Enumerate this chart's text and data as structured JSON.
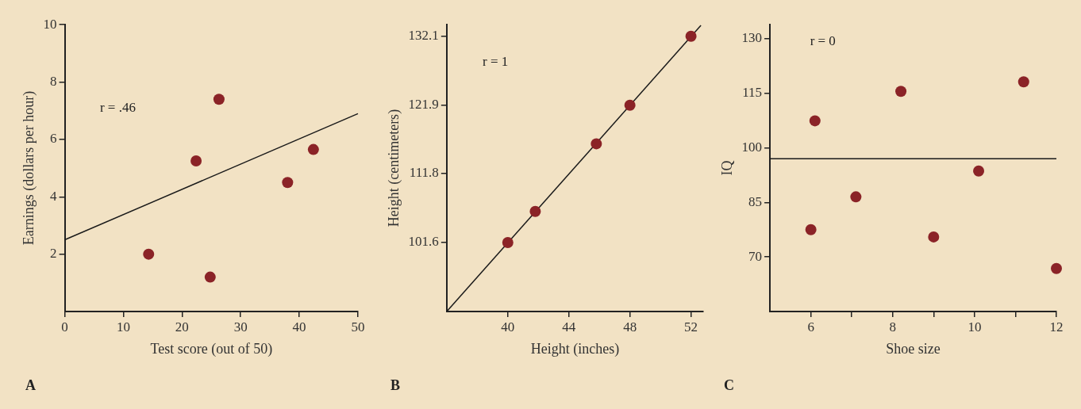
{
  "chart_data": [
    {
      "type": "scatter",
      "xlabel": "Test score (out of 50)",
      "ylabel": "Earnings (dollars per hour)",
      "annotations": [
        "r = .46",
        "A"
      ],
      "xlim": [
        0,
        50
      ],
      "xticks": [
        0,
        10,
        20,
        30,
        40,
        50
      ],
      "ylim": [
        0,
        10
      ],
      "yticks": [
        2,
        4,
        6,
        8,
        10
      ],
      "marker": "circle",
      "series": [
        {
          "color": "#8b2327",
          "x": [
            14.3,
            22.4,
            24.8,
            26.3,
            38,
            42.4
          ],
          "values": [
            2.0,
            5.25,
            1.2,
            7.4,
            4.5,
            5.65
          ]
        },
        {
          "type": "line",
          "marker": "none",
          "color": "#1a1a1a",
          "x": [
            0,
            50
          ],
          "values": [
            2.5,
            6.9
          ]
        }
      ]
    },
    {
      "type": "scatter",
      "xlabel": "Height (inches)",
      "ylabel": "Height (centimeters)",
      "annotations": [
        "r = 1",
        "B"
      ],
      "xlim": [
        36,
        52.8
      ],
      "xticks": [
        40,
        44,
        48,
        52
      ],
      "ylim": [
        91.4,
        133.8
      ],
      "yticks": [
        101.6,
        111.8,
        121.9,
        132.1
      ],
      "marker": "circle",
      "series": [
        {
          "color": "#8b2327",
          "x": [
            40,
            41.8,
            45.8,
            48,
            52
          ],
          "values": [
            101.6,
            106.2,
            116.2,
            121.9,
            132.1
          ]
        },
        {
          "type": "line",
          "marker": "none",
          "color": "#1a1a1a",
          "x": [
            36,
            52.65
          ],
          "values": [
            91.4,
            133.7
          ]
        }
      ]
    },
    {
      "type": "scatter",
      "xlabel": "Shoe size",
      "ylabel": "IQ",
      "annotations": [
        "r = 0",
        "C"
      ],
      "xlim": [
        5,
        12
      ],
      "xticks": [
        6,
        {
          "value": 7,
          "label": null
        },
        8,
        {
          "value": 9,
          "label": null
        },
        10,
        {
          "value": 11,
          "label": null
        },
        12
      ],
      "ylim": [
        55,
        133.8
      ],
      "yticks": [
        70,
        85,
        100,
        115,
        130
      ],
      "marker": "circle",
      "series": [
        {
          "color": "#8b2327",
          "x": [
            6.0,
            6.1,
            7.1,
            8.2,
            9.0,
            10.1,
            11.2,
            12.0
          ],
          "values": [
            77.5,
            107.4,
            86.5,
            115.5,
            75.5,
            93.6,
            118.1,
            66.8
          ]
        },
        {
          "type": "line",
          "marker": "none",
          "color": "#1a1a1a",
          "x": [
            5,
            12
          ],
          "values": [
            97,
            97
          ]
        }
      ]
    }
  ]
}
